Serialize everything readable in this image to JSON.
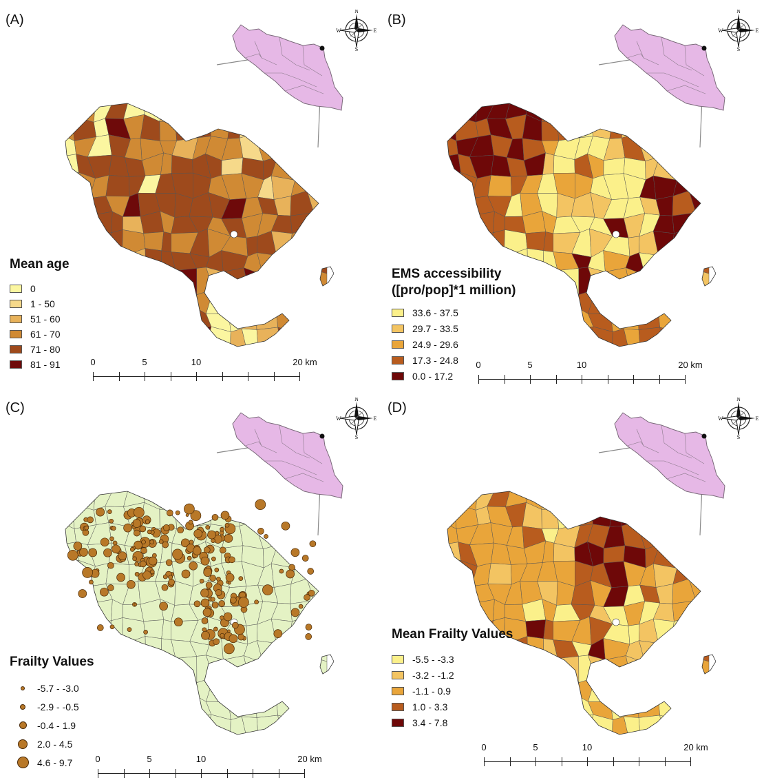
{
  "panels": {
    "a": {
      "label": "(A)",
      "legend_title_1": "Mean age",
      "legend": [
        {
          "label": "0",
          "color": "#fbf6a0"
        },
        {
          "label": "1 - 50",
          "color": "#f6d98a"
        },
        {
          "label": "51 - 60",
          "color": "#e8b25a"
        },
        {
          "label": "61 - 70",
          "color": "#d08a34"
        },
        {
          "label": "71 - 80",
          "color": "#9e4a1c"
        },
        {
          "label": "81 - 91",
          "color": "#6e0a0a"
        }
      ]
    },
    "b": {
      "label": "(B)",
      "legend_title_1": "EMS accessibility",
      "legend_title_2": "([pro/pop]*1 million)",
      "legend": [
        {
          "label": "33.6 - 37.5",
          "color": "#fbf08a"
        },
        {
          "label": "29.7 - 33.5",
          "color": "#f3c462"
        },
        {
          "label": "24.9 - 29.6",
          "color": "#e9a53a"
        },
        {
          "label": "17.3 - 24.8",
          "color": "#b85c1e"
        },
        {
          "label": "0.0 - 17.2",
          "color": "#6e0808"
        }
      ]
    },
    "c": {
      "label": "(C)",
      "legend_title_1": "Frailty Values",
      "legend": [
        {
          "label": "-5.7 - -3.0"
        },
        {
          "label": "-2.9 - -0.5"
        },
        {
          "label": "-0.4 - 1.9"
        },
        {
          "label": "2.0 - 4.5"
        },
        {
          "label": "4.6 - 9.7"
        }
      ]
    },
    "d": {
      "label": "(D)",
      "legend_title_1": "Mean Frailty Values",
      "legend": [
        {
          "label": "-5.5 - -3.3",
          "color": "#fbf08a"
        },
        {
          "label": "-3.2 - -1.2",
          "color": "#f3c462"
        },
        {
          "label": "-1.1 - 0.9",
          "color": "#e9a53a"
        },
        {
          "label": "1.0 - 3.3",
          "color": "#b85c1e"
        },
        {
          "label": "3.4 - 7.8",
          "color": "#6e0808"
        }
      ]
    }
  },
  "scale": {
    "labels": [
      "0",
      "5",
      "10",
      "20 km"
    ]
  },
  "compass": {
    "n": "N",
    "s": "S",
    "e": "E",
    "w": "W"
  },
  "colors": {
    "inset_fill": "#e6b8e6",
    "polygon_stroke": "#555555",
    "frailty_base": "#e4f2c4",
    "dot": "#b87828"
  }
}
